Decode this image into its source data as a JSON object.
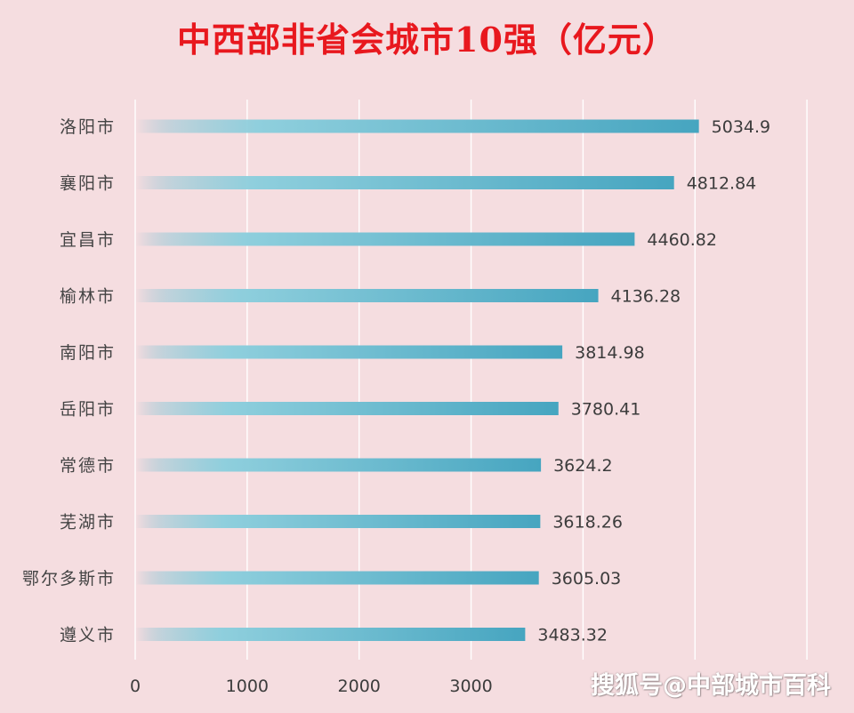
{
  "chart_data": {
    "type": "bar",
    "orientation": "horizontal",
    "title": "中西部非省会城市10强（亿元）",
    "categories": [
      "洛阳市",
      "襄阳市",
      "宜昌市",
      "榆林市",
      "南阳市",
      "岳阳市",
      "常德市",
      "芜湖市",
      "鄂尔多斯市",
      "遵义市"
    ],
    "values": [
      5034.9,
      4812.84,
      4460.82,
      4136.28,
      3814.98,
      3780.41,
      3624.2,
      3618.26,
      3605.03,
      3483.32
    ],
    "value_labels": [
      "5034.9",
      "4812.84",
      "4460.82",
      "4136.28",
      "3814.98",
      "3780.41",
      "3624.2",
      "3618.26",
      "3605.03",
      "3483.32"
    ],
    "x_ticks": [
      "0",
      "1000",
      "2000",
      "3000"
    ],
    "xlim": [
      0,
      6000
    ],
    "grid": "vertical",
    "xlabel": "",
    "ylabel": "",
    "bar_color": "#4aaac4"
  },
  "watermark": "搜狐号@中部城市百科"
}
